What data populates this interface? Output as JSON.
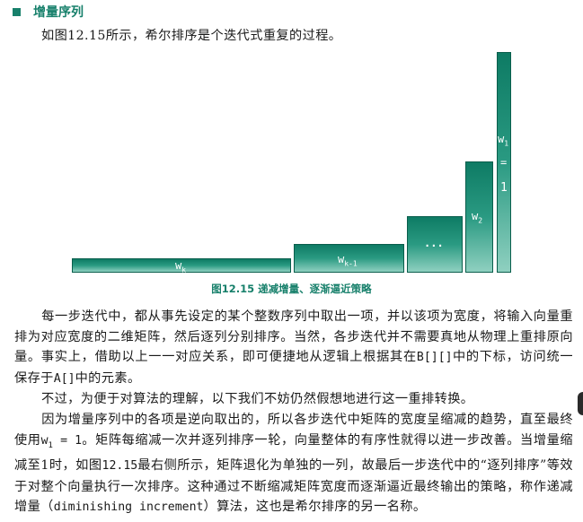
{
  "section": {
    "title": "增量序列"
  },
  "intro": "如图12.15所示，希尔排序是个迭代式重复的过程。",
  "figure": {
    "bars": [
      {
        "name": "w",
        "sub": "k"
      },
      {
        "name": "w",
        "sub": "k-1"
      },
      {
        "name": "...",
        "sub": ""
      },
      {
        "name": "w",
        "sub": "2"
      },
      {
        "name": "w",
        "sub": "1",
        "eq": "=",
        "value": "1"
      }
    ],
    "caption": "图12.15  递减增量、逐渐逼近策略"
  },
  "para1": {
    "a": "每一步迭代中，都从事先设定的某个整数序列中取出一项，并以该项为宽度，将输入向量重排为对应宽度的二维矩阵，然后逐列分别排序。当然，各步迭代并不需要真地从物理上重排原向量。事实上，借助以上一一对应关系，即可便捷地从逻辑上根据其在",
    "code1": "B[][]",
    "b": "中的下标，访问统一保存于",
    "code2": "A[]",
    "c": "中的元素。"
  },
  "para2": "不过，为便于对算法的理解，以下我们不妨仍然假想地进行这一重排转换。",
  "para3": {
    "a": "因为增量序列中的各项是逆向取出的，所以各步迭代中矩阵的宽度呈缩减的趋势，直至最终使用",
    "w": "w",
    "wsub": "1",
    "eq": " = 1",
    "b": "。矩阵每缩减一次并逐列排序一轮，向量整体的有序性就得以进一步改善。当增量缩减至1时，如图",
    "ref": "12.15",
    "c": "最右侧所示，矩阵退化为单独的一列，故最后一步迭代中的“逐列排序”等效于对整个向量执行一次排序。这种通过不断缩减矩阵宽度而逐渐逼近最终输出的策略，称作递减增量（",
    "term": "diminishing increment",
    "d": "）算法，这也是希尔排序的另一名称。"
  }
}
